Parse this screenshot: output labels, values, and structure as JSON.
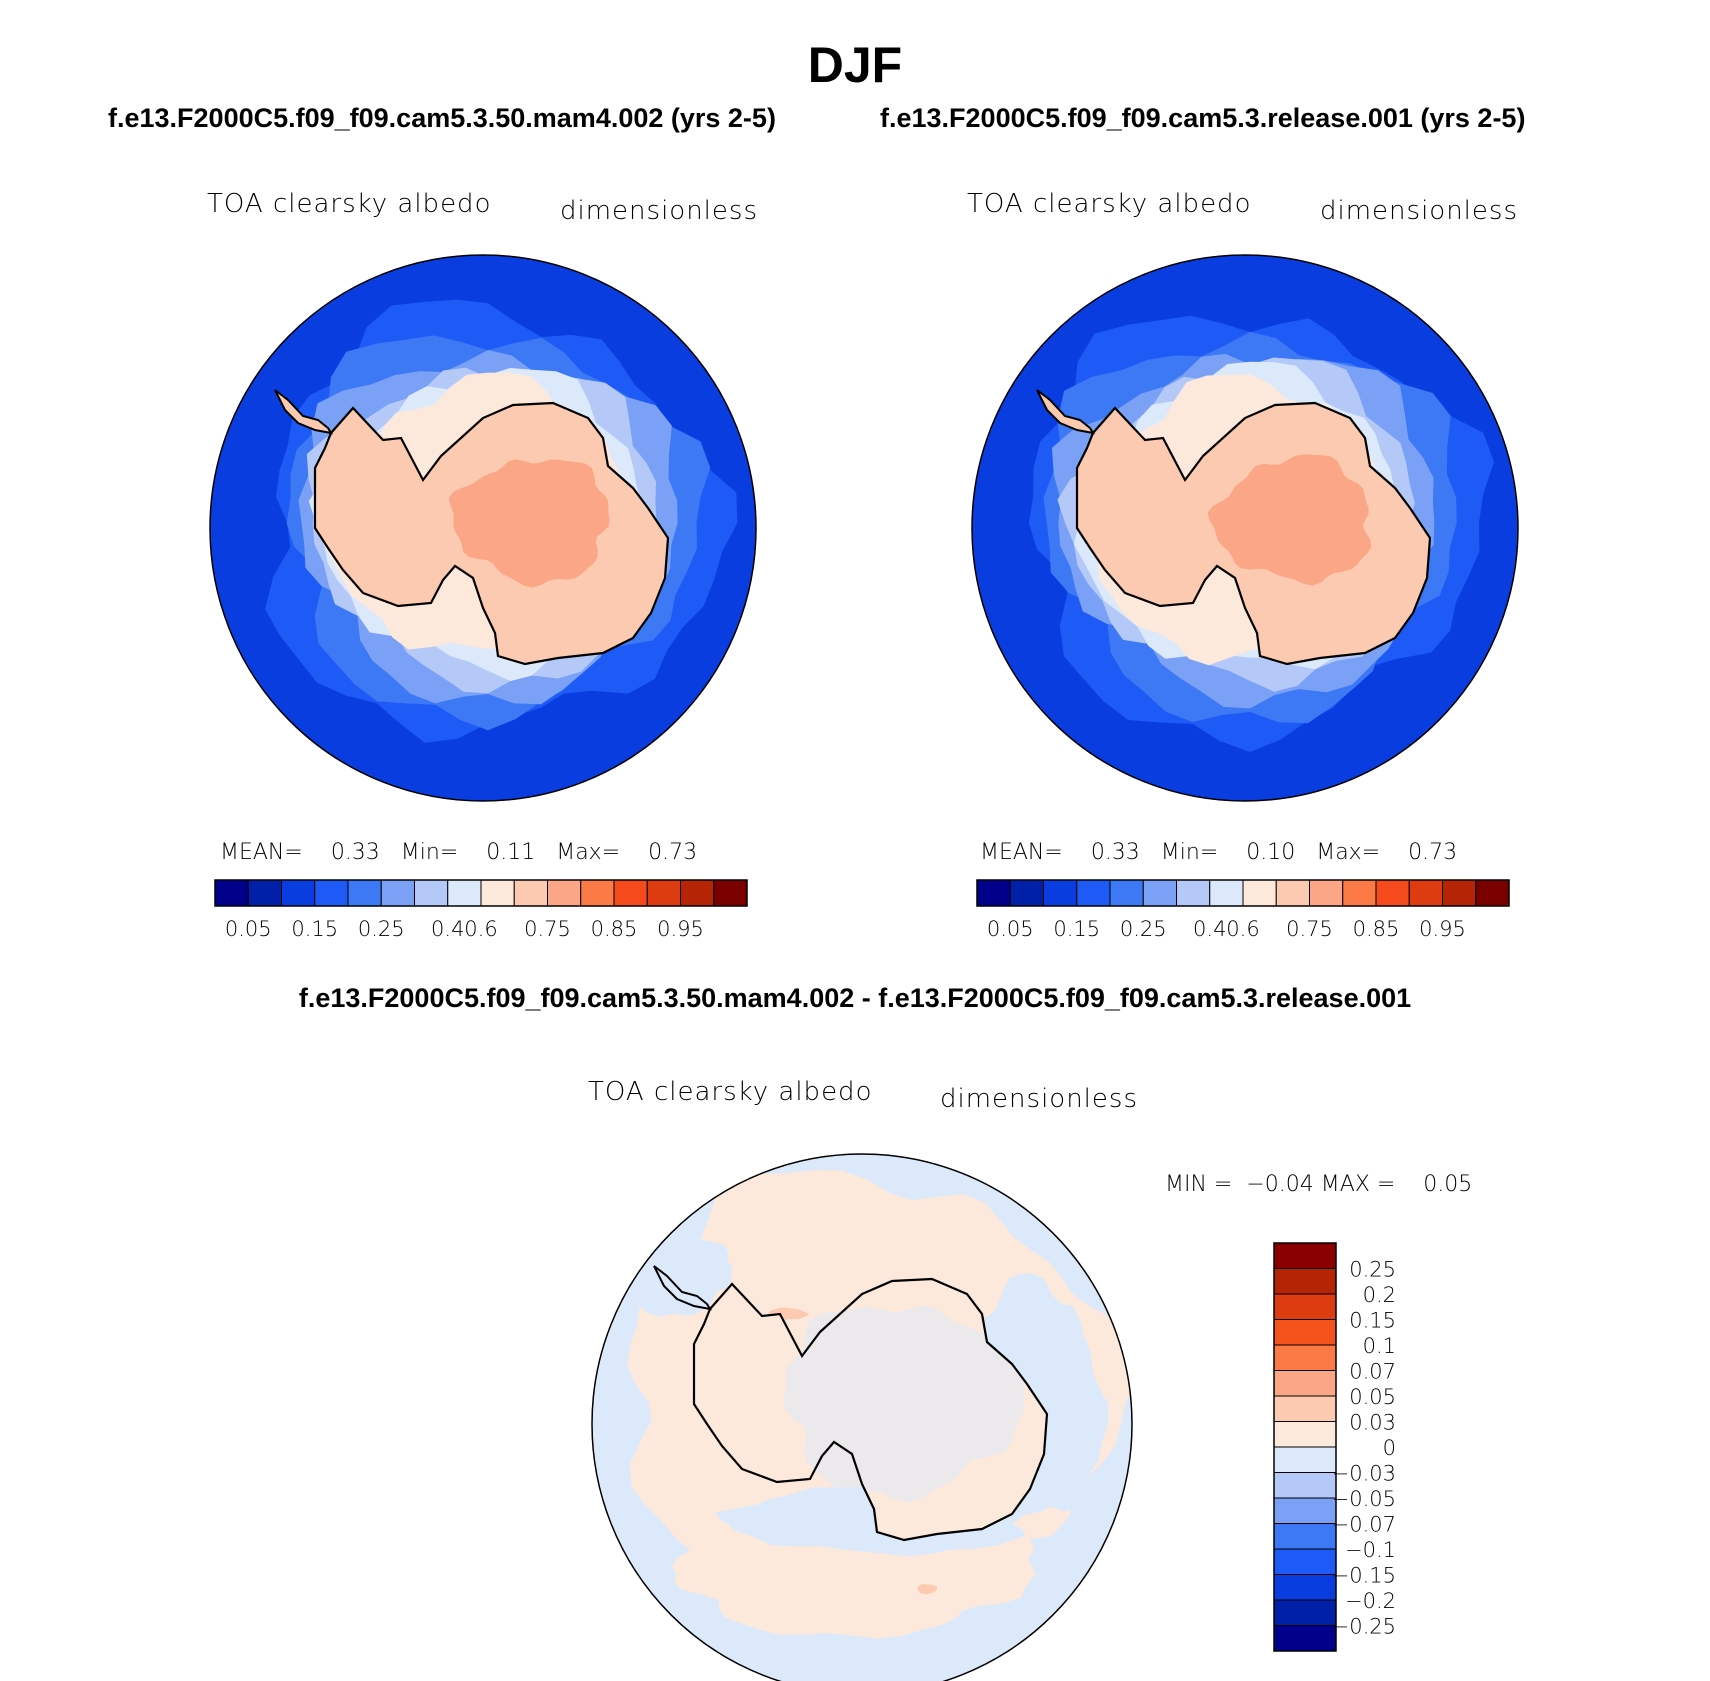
{
  "header": {
    "season": "DJF",
    "case_left": "f.e13.F2000C5.f09_f09.cam5.3.50.mam4.002 (yrs 2-5)",
    "case_right": "f.e13.F2000C5.f09_f09.cam5.3.release.001 (yrs 2-5)",
    "diff_title": "f.e13.F2000C5.f09_f09.cam5.3.50.mam4.002 - f.e13.F2000C5.f09_f09.cam5.3.release.001"
  },
  "panels": [
    {
      "variable": "TOA clearsky albedo",
      "units": "dimensionless",
      "stats": {
        "mean_label": "MEAN=",
        "mean": "0.33",
        "min_label": "Min=",
        "min": "0.11",
        "max_label": "Max=",
        "max": "0.73"
      }
    },
    {
      "variable": "TOA clearsky albedo",
      "units": "dimensionless",
      "stats": {
        "mean_label": "MEAN=",
        "mean": "0.33",
        "min_label": "Min=",
        "min": "0.10",
        "max_label": "Max=",
        "max": "0.73"
      }
    },
    {
      "variable": "TOA clearsky albedo",
      "units": "dimensionless",
      "stats": {
        "min_label": "MIN =",
        "min": "−0.04",
        "max_label": "MAX =",
        "max": "0.05"
      }
    }
  ],
  "colorbar_main": {
    "colors": [
      "#00008a",
      "#0020a8",
      "#0a3de0",
      "#1e5af5",
      "#3d78f5",
      "#7aa1f5",
      "#b5c9f8",
      "#dce9fa",
      "#fde9dc",
      "#fccab0",
      "#fba787",
      "#fb7a45",
      "#f54b1c",
      "#dc3c10",
      "#b42405",
      "#7a0000"
    ],
    "labels": [
      "0.05",
      "0.15",
      "0.25",
      "0.4",
      "0.6",
      "0.75",
      "0.85",
      "0.95"
    ]
  },
  "colorbar_diff": {
    "colors": [
      "#8a0000",
      "#b42405",
      "#dc3c10",
      "#f5531c",
      "#fb7a45",
      "#fba787",
      "#fccab0",
      "#fde9dc",
      "#dce9fa",
      "#b5c9f8",
      "#7aa1f5",
      "#3d78f5",
      "#1e5af5",
      "#0a3de0",
      "#0020a8",
      "#00008a"
    ],
    "labels": [
      "0.25",
      "0.2",
      "0.15",
      "0.1",
      "0.07",
      "0.05",
      "0.03",
      "0",
      "−0.03",
      "−0.05",
      "−0.07",
      "−0.1",
      "−0.15",
      "−0.2",
      "−0.25"
    ]
  },
  "map_colors": {
    "ocean": "#0a3de0",
    "ring1": "#1e5af5",
    "ring2": "#3d78f5",
    "ring3": "#7aa1f5",
    "ring4": "#b5c9f8",
    "ring5": "#dce9fa",
    "seaice": "#fde9dc",
    "land": "#fccab0",
    "plateau": "#fba787",
    "diff_pos": "#fde9dc",
    "diff_neg": "#dce9fa",
    "diff_pos2": "#fccab0"
  }
}
